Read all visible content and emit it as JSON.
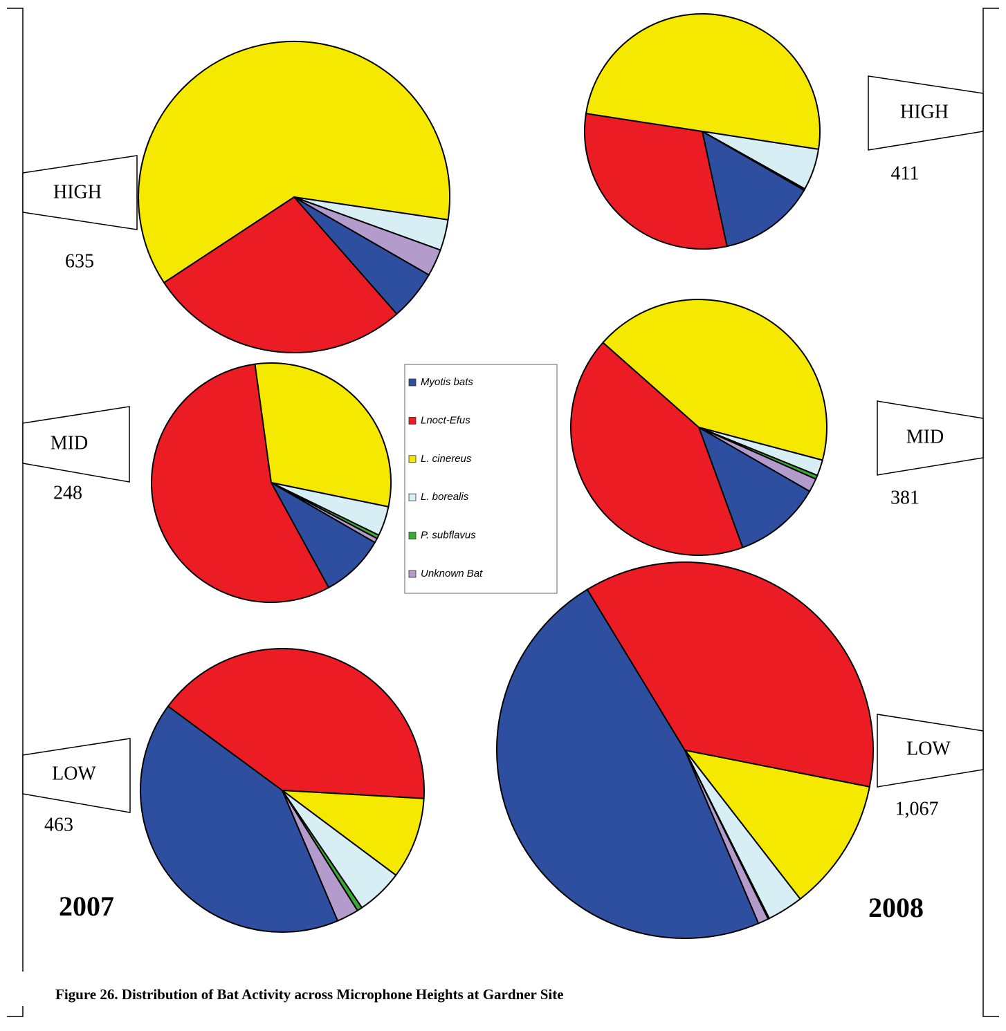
{
  "caption": "Figure 26. Distribution of Bat Activity across Microphone Heights at Gardner Site",
  "years": [
    "2007",
    "2008"
  ],
  "legend": {
    "labels": [
      "Myotis bats",
      "Lnoct-Efus",
      "L. cinereus",
      "L. borealis",
      "P. subflavus",
      "Unknown Bat"
    ],
    "colors": [
      "#2e4fa0",
      "#ec1c24",
      "#f5e900",
      "#d6eef4",
      "#3aa935",
      "#b39ccb"
    ]
  },
  "chart_data": [
    {
      "type": "pie",
      "label": "HIGH",
      "total": 635,
      "start_angle": 120,
      "values": [
        5.2,
        27.2,
        61.6,
        3.2,
        0,
        2.8
      ]
    },
    {
      "type": "pie",
      "label": "MID",
      "total": 248,
      "start_angle": 120,
      "values": [
        8.7,
        55.8,
        30.4,
        4.0,
        0.5,
        0.6
      ]
    },
    {
      "type": "pie",
      "label": "LOW",
      "total": 463,
      "start_angle": 157,
      "values": [
        41.5,
        40.8,
        9.3,
        5.3,
        0.6,
        2.5
      ]
    },
    {
      "type": "pie",
      "label": "HIGH",
      "total": 411,
      "start_angle": 120,
      "values": [
        13.3,
        30.8,
        50.0,
        5.7,
        0,
        0.2
      ]
    },
    {
      "type": "pie",
      "label": "MID",
      "total": 381,
      "start_angle": 120,
      "values": [
        11.1,
        42.1,
        42.6,
        2.0,
        0.5,
        1.7
      ]
    },
    {
      "type": "pie",
      "label": "LOW",
      "total": {
        "value": 1067,
        "label": "1,067"
      },
      "start_angle": 157,
      "values": [
        47.7,
        36.8,
        11.4,
        3.1,
        0.1,
        0.9
      ]
    }
  ]
}
